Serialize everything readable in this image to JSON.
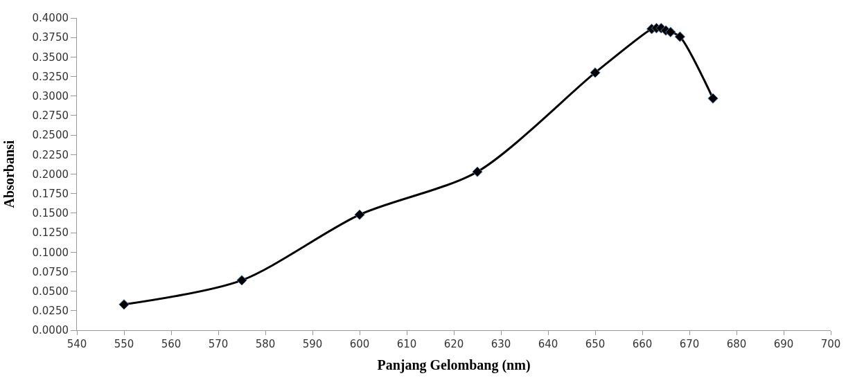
{
  "chart_data": {
    "type": "line",
    "xlabel": "Panjang Gelombang (nm)",
    "ylabel": "Absorbansi",
    "x": [
      550,
      575,
      600,
      625,
      650,
      662,
      663,
      664,
      665,
      666,
      668,
      675
    ],
    "series": [
      {
        "color": "#000000",
        "values": [
          0.033,
          0.064,
          0.148,
          0.203,
          0.33,
          0.386,
          0.387,
          0.387,
          0.384,
          0.382,
          0.376,
          0.297
        ]
      }
    ],
    "xlim": [
      540,
      700
    ],
    "xticks": [
      540,
      550,
      560,
      570,
      580,
      590,
      600,
      610,
      620,
      630,
      640,
      650,
      660,
      670,
      680,
      690,
      700
    ],
    "ylim": [
      0,
      0.4
    ],
    "yticks": [
      {
        "value": 0,
        "label": "0.0000"
      },
      {
        "value": 0.025,
        "label": "0.0250"
      },
      {
        "value": 0.05,
        "label": "0.0500"
      },
      {
        "value": 0.075,
        "label": "0.0750"
      },
      {
        "value": 0.1,
        "label": "0.1000"
      },
      {
        "value": 0.125,
        "label": "0.1250"
      },
      {
        "value": 0.15,
        "label": "0.1500"
      },
      {
        "value": 0.175,
        "label": "0.1750"
      },
      {
        "value": 0.2,
        "label": "0.2000"
      },
      {
        "value": 0.225,
        "label": "0.2250"
      },
      {
        "value": 0.25,
        "label": "0.2500"
      },
      {
        "value": 0.275,
        "label": "0.2750"
      },
      {
        "value": 0.3,
        "label": "0.3000"
      },
      {
        "value": 0.325,
        "label": "0.3250"
      },
      {
        "value": 0.35,
        "label": "0.3500"
      },
      {
        "value": 0.375,
        "label": "0.3750"
      },
      {
        "value": 0.4,
        "label": "0.4000"
      }
    ],
    "marker": "diamond",
    "line_style": "solid"
  }
}
